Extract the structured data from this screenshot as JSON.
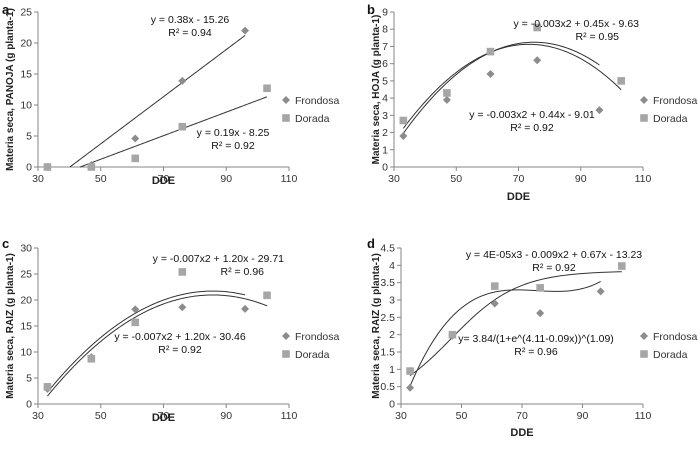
{
  "colors": {
    "frondosa": "#8c8c8c",
    "dorada": "#a6a6a6",
    "axis": "#868686",
    "line": "#333333"
  },
  "chart_data": [
    {
      "panel": "a",
      "type": "scatter",
      "xlabel": "DDE",
      "ylabel": "Materia seca, PANOJA (g planta-1)",
      "xlim": [
        30,
        110
      ],
      "ylim": [
        0,
        25
      ],
      "xticks": [
        30,
        50,
        70,
        90,
        110
      ],
      "yticks": [
        0,
        5,
        10,
        15,
        20,
        25
      ],
      "legend": "right",
      "series": [
        {
          "name": "Frondosa",
          "marker": "diamond",
          "x": [
            33,
            47,
            61,
            76,
            96
          ],
          "y": [
            0.0,
            0.3,
            4.6,
            13.9,
            22.0
          ],
          "fit": {
            "kind": "poly",
            "coef": [
              -15.26,
              0.38
            ],
            "domain": [
              40.2,
              96
            ]
          },
          "equation": "y = 0.38x - 15.26",
          "r2": "R² = 0.94"
        },
        {
          "name": "Dorada",
          "marker": "square",
          "x": [
            33,
            47,
            61,
            76,
            103
          ],
          "y": [
            0.0,
            0.0,
            1.4,
            6.5,
            12.7
          ],
          "fit": {
            "kind": "poly",
            "coef": [
              -8.25,
              0.19
            ],
            "domain": [
              43.4,
              103
            ]
          },
          "equation": "y = 0.19x - 8.25",
          "r2": "R² = 0.92"
        }
      ]
    },
    {
      "panel": "b",
      "type": "scatter",
      "xlabel": "DDE",
      "ylabel": "Materia seca, HOJA (g planta-1)",
      "xlim": [
        30,
        110
      ],
      "ylim": [
        0,
        9
      ],
      "xticks": [
        30,
        50,
        70,
        90,
        110
      ],
      "yticks": [
        0,
        1,
        2,
        3,
        4,
        5,
        6,
        7,
        8,
        9
      ],
      "legend": "right",
      "series": [
        {
          "name": "Frondosa",
          "marker": "diamond",
          "x": [
            33,
            47,
            61,
            76,
            96
          ],
          "y": [
            1.8,
            3.9,
            5.4,
            6.2,
            3.3
          ],
          "fit": {
            "kind": "poly",
            "coef": [
              -9.63,
              0.45,
              -0.003
            ],
            "domain": [
              33,
              96
            ]
          },
          "equation": "y = -0.003x2 + 0.45x - 9.63",
          "r2": "R² = 0.95"
        },
        {
          "name": "Dorada",
          "marker": "square",
          "x": [
            33,
            47,
            61,
            76,
            103
          ],
          "y": [
            2.7,
            4.3,
            6.7,
            8.1,
            5.0
          ],
          "fit": {
            "kind": "poly",
            "coef": [
              -9.01,
              0.44,
              -0.003
            ],
            "domain": [
              33,
              103
            ]
          },
          "equation": "y = -0.003x2 + 0.44x - 9.01",
          "r2": "R² = 0.92"
        }
      ]
    },
    {
      "panel": "c",
      "type": "scatter",
      "xlabel": "DDE",
      "ylabel": "Materia seca, RAIZ (g planta-1)",
      "xlim": [
        30,
        110
      ],
      "ylim": [
        0,
        30
      ],
      "xticks": [
        30,
        50,
        70,
        90,
        110
      ],
      "yticks": [
        0,
        5,
        10,
        15,
        20,
        25,
        30
      ],
      "legend": "right",
      "series": [
        {
          "name": "Frondosa",
          "marker": "diamond",
          "x": [
            33,
            47,
            61,
            76,
            96
          ],
          "y": [
            2.9,
            9.0,
            18.2,
            18.6,
            18.3
          ],
          "fit": {
            "kind": "poly",
            "coef": [
              -29.71,
              1.2,
              -0.007
            ],
            "domain": [
              33,
              96
            ]
          },
          "equation": "y = -0.007x2 + 1.20x - 29.71",
          "r2": "R² = 0.96"
        },
        {
          "name": "Dorada",
          "marker": "square",
          "x": [
            33,
            47,
            61,
            76,
            103
          ],
          "y": [
            3.3,
            8.7,
            15.7,
            25.4,
            20.9
          ],
          "fit": {
            "kind": "poly",
            "coef": [
              -30.46,
              1.2,
              -0.007
            ],
            "domain": [
              33,
              103
            ]
          },
          "equation": "y = -0.007x2 + 1.20x - 30.46",
          "r2": "R² = 0.92"
        }
      ]
    },
    {
      "panel": "d",
      "type": "scatter",
      "xlabel": "DDE",
      "ylabel": "Materia seca, RAIZ (g planta-1)",
      "xlim": [
        30,
        110
      ],
      "ylim": [
        0,
        4.5
      ],
      "xticks": [
        30,
        50,
        70,
        90,
        110
      ],
      "yticks": [
        0,
        0.5,
        1,
        1.5,
        2,
        2.5,
        3,
        3.5,
        4,
        4.5
      ],
      "legend": "right",
      "series": [
        {
          "name": "Frondosa",
          "marker": "diamond",
          "x": [
            33,
            47,
            61,
            76,
            96
          ],
          "y": [
            0.47,
            1.97,
            2.9,
            2.62,
            3.25
          ],
          "fit": {
            "kind": "poly",
            "coef": [
              -13.23,
              0.67,
              -0.009,
              4e-05
            ],
            "domain": [
              33,
              96
            ]
          },
          "equation": "y = 4E-05x3 - 0.009x2 + 0.67x - 13.23",
          "r2": "R² = 0.92"
        },
        {
          "name": "Dorada",
          "marker": "square",
          "x": [
            33,
            47,
            61,
            76,
            103
          ],
          "y": [
            0.95,
            2.0,
            3.4,
            3.35,
            3.98
          ],
          "fit": {
            "kind": "logistic",
            "a": 3.84,
            "b": 4.11,
            "c": 0.09,
            "d": 1.09,
            "domain": [
              33,
              103
            ]
          },
          "equation": "y= 3.84/(1+e^(4.11-0.09x))^(1.09)",
          "r2": "R² = 0.96"
        }
      ]
    }
  ]
}
